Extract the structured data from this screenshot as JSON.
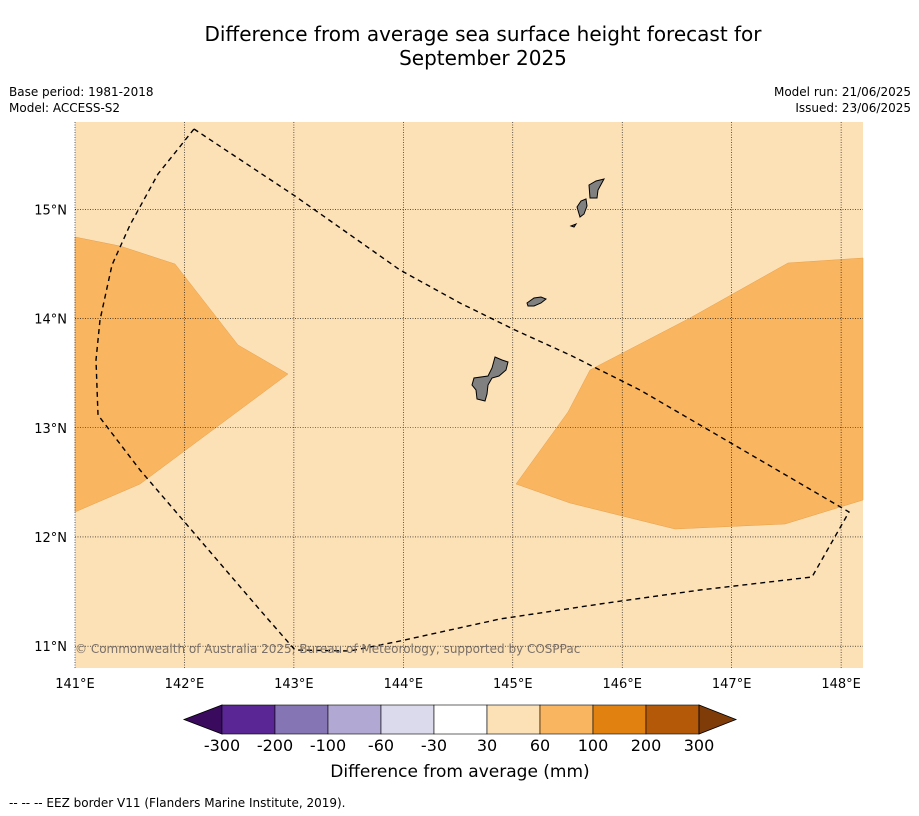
{
  "title_line1": "Difference from average sea surface height forecast for",
  "title_line2": "September 2025",
  "meta": {
    "base_period": "Base period: 1981-2018",
    "model": "Model: ACCESS-S2",
    "model_run": "Model run: 21/06/2025",
    "issued": "Issued: 23/06/2025"
  },
  "map": {
    "lon_range": [
      141.0,
      148.2
    ],
    "lat_range": [
      10.8,
      15.8
    ],
    "background_color": "#fce0b6",
    "lon_ticks": [
      "141°E",
      "142°E",
      "143°E",
      "144°E",
      "145°E",
      "146°E",
      "147°E",
      "148°E"
    ],
    "lat_ticks": [
      "11°N",
      "12°N",
      "13°N",
      "14°N",
      "15°N"
    ],
    "copyright": "© Commonwealth of Australia 2025, Bureau of Meteorology, supported by COSPPac"
  },
  "colorbar": {
    "labels": [
      "-300",
      "-200",
      "-100",
      "-60",
      "-30",
      "30",
      "60",
      "100",
      "200",
      "300"
    ],
    "colors": [
      "#3a0a5e",
      "#5a2594",
      "#8575b4",
      "#b1a8d4",
      "#dbd9ec",
      "#ffffff",
      "#fce0b6",
      "#f9b55f",
      "#e1810f",
      "#b35908",
      "#7f3b08"
    ],
    "title": "Difference from average (mm)"
  },
  "footnote": "--  --  -- EEZ border V11 (Flanders Marine Institute, 2019)."
}
